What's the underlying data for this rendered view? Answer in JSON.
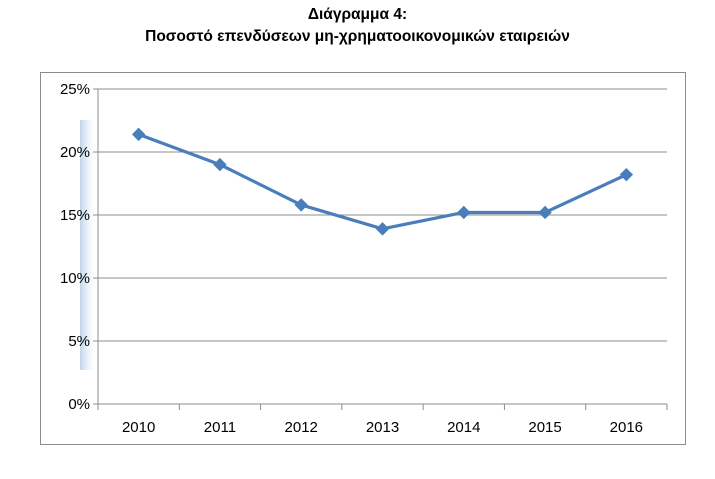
{
  "title": {
    "line1": "Διάγραμμα 4:",
    "line2": "Ποσοστό επενδύσεων μη-χρηματοοικονομικών εταιρειών"
  },
  "chart_data": {
    "type": "line",
    "title": "Διάγραμμα 4: Ποσοστό επενδύσεων μη-χρηματοοικονομικών εταιρειών",
    "categories": [
      "2010",
      "2011",
      "2012",
      "2013",
      "2014",
      "2015",
      "2016"
    ],
    "series": [
      {
        "values": [
          21.4,
          19.0,
          15.8,
          13.9,
          15.2,
          15.2,
          18.2
        ]
      }
    ],
    "ylim": [
      0,
      25
    ],
    "yticks": [
      0,
      5,
      10,
      15,
      20,
      25
    ],
    "ytick_labels": [
      "0%",
      "5%",
      "10%",
      "15%",
      "20%",
      "25%"
    ],
    "y_unit": "%",
    "grid": true,
    "legend": "none",
    "line_color": "#4a7ebb",
    "marker": "diamond"
  }
}
